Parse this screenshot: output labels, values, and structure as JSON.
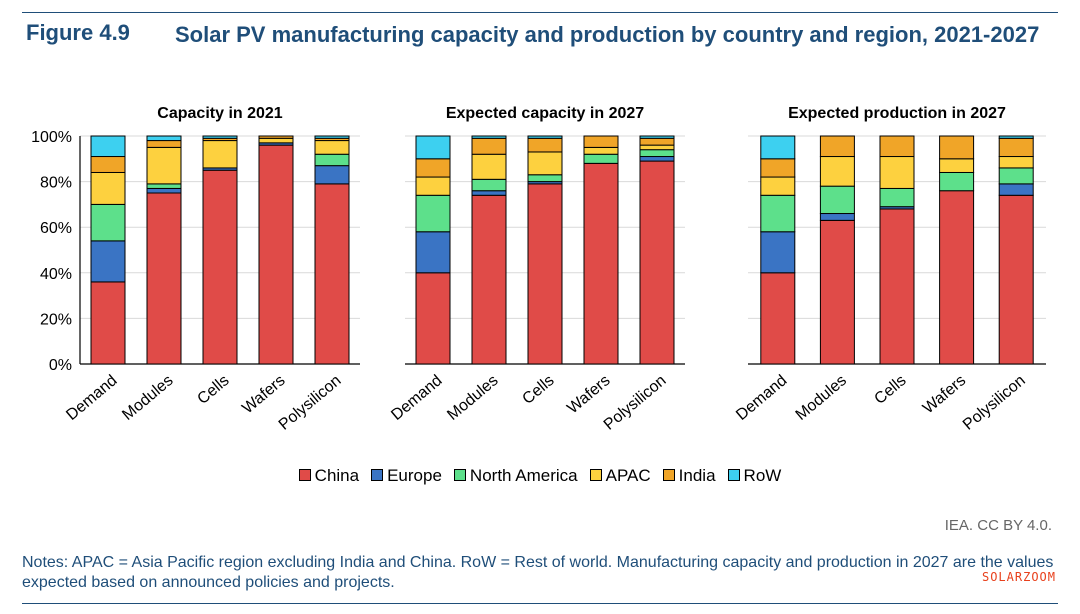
{
  "figure": {
    "label": "Figure 4.9",
    "title": "Solar PV manufacturing capacity and production by country and region, 2021-2027"
  },
  "chart_data": [
    {
      "type": "bar",
      "stacked": true,
      "title": "Capacity in 2021",
      "categories": [
        "Demand",
        "Modules",
        "Cells",
        "Wafers",
        "Polysilicon"
      ],
      "ylim": [
        0,
        100
      ],
      "yticks": [
        "0%",
        "20%",
        "40%",
        "60%",
        "80%",
        "100%"
      ],
      "grid": true,
      "series": [
        {
          "name": "China",
          "values": [
            36,
            75,
            85,
            96,
            79
          ]
        },
        {
          "name": "Europe",
          "values": [
            18,
            2,
            1,
            1,
            8
          ]
        },
        {
          "name": "North America",
          "values": [
            16,
            2,
            0,
            0,
            5
          ]
        },
        {
          "name": "APAC",
          "values": [
            14,
            16,
            12,
            2,
            6
          ]
        },
        {
          "name": "India",
          "values": [
            7,
            3,
            1,
            1,
            1
          ]
        },
        {
          "name": "RoW",
          "values": [
            9,
            2,
            1,
            0,
            1
          ]
        }
      ]
    },
    {
      "type": "bar",
      "stacked": true,
      "title": "Expected capacity in 2027",
      "categories": [
        "Demand",
        "Modules",
        "Cells",
        "Wafers",
        "Polysilicon"
      ],
      "ylim": [
        0,
        100
      ],
      "series": [
        {
          "name": "China",
          "values": [
            40,
            74,
            79,
            88,
            89
          ]
        },
        {
          "name": "Europe",
          "values": [
            18,
            2,
            1,
            0,
            2
          ]
        },
        {
          "name": "North America",
          "values": [
            16,
            5,
            3,
            4,
            3
          ]
        },
        {
          "name": "APAC",
          "values": [
            8,
            11,
            10,
            3,
            2
          ]
        },
        {
          "name": "India",
          "values": [
            8,
            7,
            6,
            5,
            3
          ]
        },
        {
          "name": "RoW",
          "values": [
            10,
            1,
            1,
            0,
            1
          ]
        }
      ]
    },
    {
      "type": "bar",
      "stacked": true,
      "title": "Expected production in 2027",
      "categories": [
        "Demand",
        "Modules",
        "Cells",
        "Wafers",
        "Polysilicon"
      ],
      "ylim": [
        0,
        100
      ],
      "series": [
        {
          "name": "China",
          "values": [
            40,
            63,
            68,
            76,
            74
          ]
        },
        {
          "name": "Europe",
          "values": [
            18,
            3,
            1,
            0,
            5
          ]
        },
        {
          "name": "North America",
          "values": [
            16,
            12,
            8,
            8,
            7
          ]
        },
        {
          "name": "APAC",
          "values": [
            8,
            13,
            14,
            6,
            5
          ]
        },
        {
          "name": "India",
          "values": [
            8,
            9,
            9,
            10,
            8
          ]
        },
        {
          "name": "RoW",
          "values": [
            10,
            0,
            0,
            0,
            1
          ]
        }
      ]
    }
  ],
  "legend": [
    {
      "name": "China",
      "color": "#e04b48"
    },
    {
      "name": "Europe",
      "color": "#3a74c4"
    },
    {
      "name": "North America",
      "color": "#5de08b"
    },
    {
      "name": "APAC",
      "color": "#fdd13f"
    },
    {
      "name": "India",
      "color": "#f0a528"
    },
    {
      "name": "RoW",
      "color": "#3dd0f0"
    }
  ],
  "source": "IEA. CC BY 4.0.",
  "notes": "Notes: APAC = Asia Pacific region excluding India and China. RoW = Rest of world. Manufacturing capacity and production in 2027 are the values expected based on announced policies and projects.",
  "watermark": "SOLARZOOM"
}
